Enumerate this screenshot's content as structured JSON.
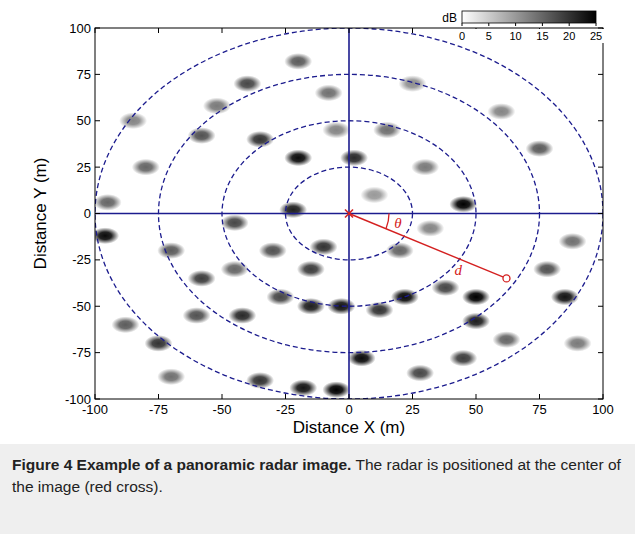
{
  "chart_data": {
    "type": "heatmap",
    "xlabel": "Distance X (m)",
    "ylabel": "Distance Y (m)",
    "xlim": [
      -100,
      100
    ],
    "ylim": [
      -100,
      100
    ],
    "xticks": [
      -100,
      -75,
      -50,
      -25,
      0,
      25,
      50,
      75,
      100
    ],
    "yticks": [
      -100,
      -75,
      -50,
      -25,
      0,
      25,
      50,
      75,
      100
    ],
    "grid": false,
    "rings": [
      25,
      50,
      75,
      100
    ],
    "colorbar": {
      "label": "dB",
      "range": [
        0,
        25
      ],
      "ticks": [
        0,
        5,
        10,
        15,
        20,
        25
      ]
    },
    "annotation": {
      "x": 62,
      "y": -35,
      "angle_label": "θ",
      "distance_label": "d"
    },
    "targets": [
      {
        "x": -5,
        "y": -95,
        "value": 25
      },
      {
        "x": -18,
        "y": -94,
        "value": 23
      },
      {
        "x": -35,
        "y": -90,
        "value": 20
      },
      {
        "x": 28,
        "y": -86,
        "value": 18
      },
      {
        "x": 5,
        "y": -78,
        "value": 24
      },
      {
        "x": 45,
        "y": -78,
        "value": 19
      },
      {
        "x": 62,
        "y": -68,
        "value": 15
      },
      {
        "x": 50,
        "y": -45,
        "value": 25
      },
      {
        "x": 50,
        "y": -58,
        "value": 22
      },
      {
        "x": 22,
        "y": -45,
        "value": 24
      },
      {
        "x": 12,
        "y": -52,
        "value": 20
      },
      {
        "x": 38,
        "y": -40,
        "value": 18
      },
      {
        "x": -15,
        "y": -50,
        "value": 22
      },
      {
        "x": -27,
        "y": -45,
        "value": 18
      },
      {
        "x": -3,
        "y": -50,
        "value": 23
      },
      {
        "x": -42,
        "y": -55,
        "value": 21
      },
      {
        "x": -60,
        "y": -55,
        "value": 17
      },
      {
        "x": -75,
        "y": -70,
        "value": 20
      },
      {
        "x": -88,
        "y": -60,
        "value": 16
      },
      {
        "x": 85,
        "y": -45,
        "value": 23
      },
      {
        "x": 78,
        "y": -30,
        "value": 17
      },
      {
        "x": 45,
        "y": 5,
        "value": 25
      },
      {
        "x": -10,
        "y": -18,
        "value": 20
      },
      {
        "x": -22,
        "y": 2,
        "value": 22
      },
      {
        "x": -45,
        "y": -5,
        "value": 18
      },
      {
        "x": -96,
        "y": -12,
        "value": 24
      },
      {
        "x": -95,
        "y": 6,
        "value": 15
      },
      {
        "x": -70,
        "y": -20,
        "value": 16
      },
      {
        "x": -58,
        "y": -35,
        "value": 19
      },
      {
        "x": 20,
        "y": -20,
        "value": 15
      },
      {
        "x": 2,
        "y": 30,
        "value": 21
      },
      {
        "x": -20,
        "y": 30,
        "value": 24
      },
      {
        "x": -8,
        "y": 65,
        "value": 14
      },
      {
        "x": -20,
        "y": 82,
        "value": 16
      },
      {
        "x": -40,
        "y": 70,
        "value": 18
      },
      {
        "x": -52,
        "y": 58,
        "value": 13
      },
      {
        "x": -5,
        "y": 45,
        "value": 12
      },
      {
        "x": 15,
        "y": 45,
        "value": 14
      },
      {
        "x": -58,
        "y": 42,
        "value": 17
      },
      {
        "x": -80,
        "y": 25,
        "value": 15
      },
      {
        "x": -85,
        "y": 50,
        "value": 12
      },
      {
        "x": 60,
        "y": 55,
        "value": 12
      },
      {
        "x": 75,
        "y": 35,
        "value": 16
      },
      {
        "x": 88,
        "y": -15,
        "value": 14
      },
      {
        "x": 30,
        "y": 25,
        "value": 13
      },
      {
        "x": 25,
        "y": 70,
        "value": 11
      },
      {
        "x": -30,
        "y": -20,
        "value": 17
      },
      {
        "x": -45,
        "y": -30,
        "value": 15
      },
      {
        "x": -15,
        "y": -30,
        "value": 19
      },
      {
        "x": 90,
        "y": -70,
        "value": 13
      },
      {
        "x": -70,
        "y": -88,
        "value": 14
      },
      {
        "x": 32,
        "y": -8,
        "value": 12
      },
      {
        "x": -35,
        "y": 40,
        "value": 20
      },
      {
        "x": 10,
        "y": 10,
        "value": 10
      }
    ]
  },
  "caption": {
    "label": "Figure 4",
    "title": "Example of a panoramic radar image.",
    "text": "The radar is positioned at the center of the image (red cross)."
  }
}
